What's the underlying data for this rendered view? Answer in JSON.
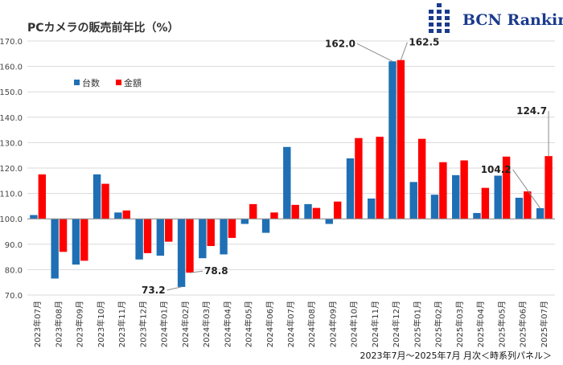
{
  "header": {
    "title": "PCカメラの販売前年比（%）",
    "brand": "BCN Ranking",
    "footer": "2023年7月～2025年7月 月次＜時系列パネル＞"
  },
  "colors": {
    "units": "#1f6fb5",
    "amount": "#ff0000",
    "grid": "#d9d9d9",
    "logo": "#1a3a8c"
  },
  "chart_data": {
    "type": "bar",
    "title": "PCカメラの販売前年比（%）",
    "categories": [
      "2023年07月",
      "2023年08月",
      "2023年09月",
      "2023年10月",
      "2023年11月",
      "2023年12月",
      "2024年01月",
      "2024年02月",
      "2024年03月",
      "2024年04月",
      "2024年05月",
      "2024年06月",
      "2024年07月",
      "2024年08月",
      "2024年09月",
      "2024年10月",
      "2024年11月",
      "2024年12月",
      "2025年01月",
      "2025年02月",
      "2025年03月",
      "2025年04月",
      "2025年05月",
      "2025年06月",
      "2025年07月"
    ],
    "series": [
      {
        "name": "台数",
        "values": [
          101.5,
          76.5,
          82.0,
          117.5,
          102.5,
          84.0,
          85.5,
          73.2,
          84.5,
          86.0,
          98.0,
          94.5,
          128.3,
          105.8,
          98.0,
          123.8,
          108.0,
          162.0,
          114.5,
          109.5,
          117.2,
          102.3,
          117.0,
          108.3,
          104.2
        ]
      },
      {
        "name": "金額",
        "values": [
          117.5,
          87.0,
          83.5,
          113.8,
          103.3,
          86.5,
          91.0,
          78.8,
          89.3,
          92.5,
          105.8,
          102.5,
          105.5,
          104.3,
          106.8,
          131.8,
          132.3,
          162.5,
          131.5,
          122.3,
          123.0,
          112.2,
          124.5,
          110.8,
          124.7
        ]
      }
    ],
    "baseline": 100,
    "ylim": [
      70,
      170
    ],
    "yticks": [
      "70.0",
      "80.0",
      "90.0",
      "100.0",
      "110.0",
      "120.0",
      "130.0",
      "140.0",
      "150.0",
      "160.0",
      "170.0"
    ],
    "legend": [
      "台数",
      "金額"
    ],
    "legend_position": "top-left",
    "annotations": [
      {
        "label": "162.0",
        "series": 0,
        "index": 17
      },
      {
        "label": "162.5",
        "series": 1,
        "index": 17
      },
      {
        "label": "73.2",
        "series": 0,
        "index": 7
      },
      {
        "label": "78.8",
        "series": 1,
        "index": 7
      },
      {
        "label": "124.7",
        "series": 1,
        "index": 24
      },
      {
        "label": "104.2",
        "series": 0,
        "index": 24
      }
    ]
  }
}
